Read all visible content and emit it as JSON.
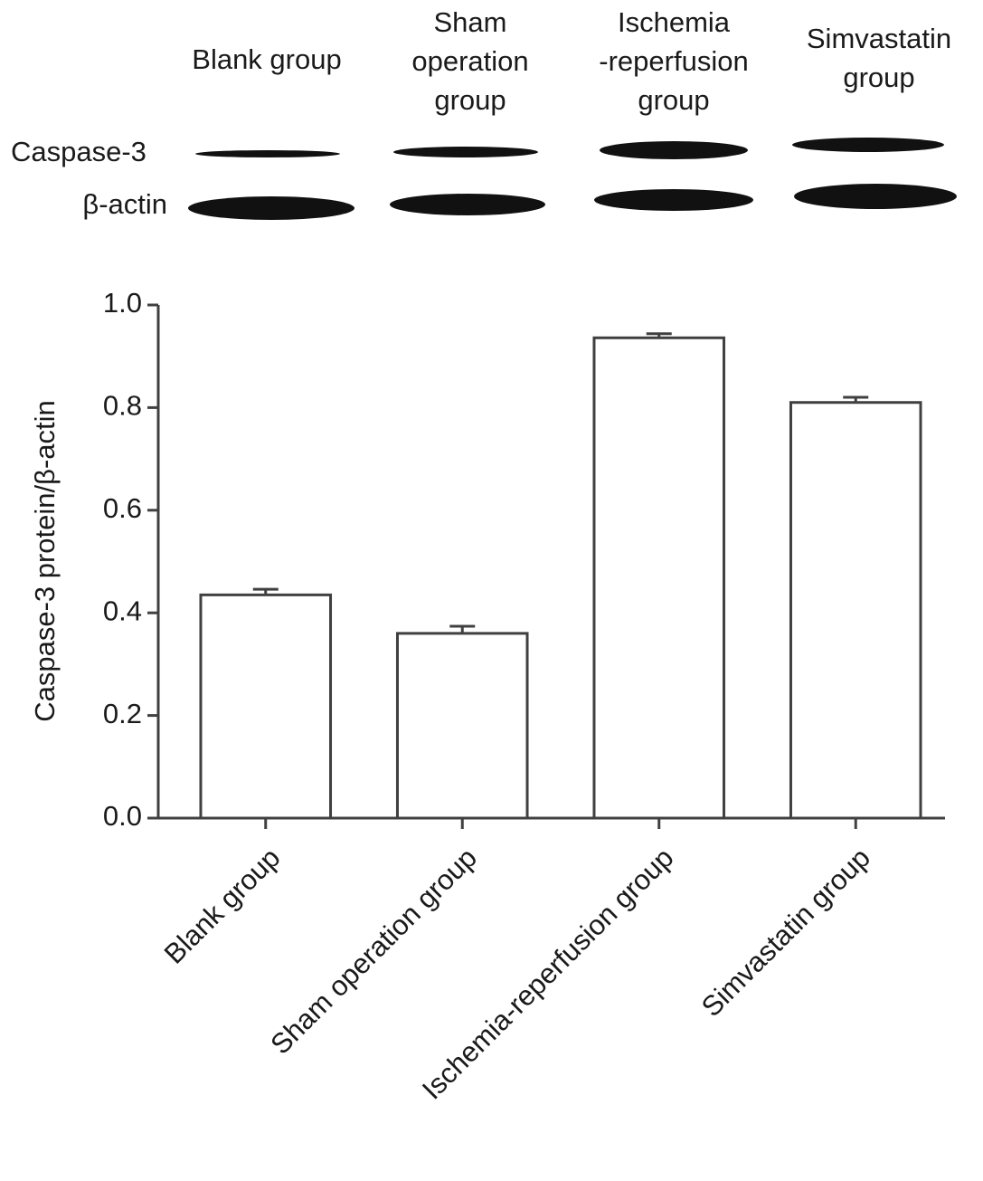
{
  "blot": {
    "columns": [
      [
        "Blank group"
      ],
      [
        "Sham",
        "operation",
        "group"
      ],
      [
        "Ischemia",
        "-reperfusion",
        "group"
      ],
      [
        "Simvastatin",
        "group"
      ]
    ],
    "rows": [
      "Caspase-3",
      "β-actin"
    ]
  },
  "chart_data": {
    "type": "bar",
    "ylabel": "Caspase-3 protein/β-actin",
    "categories": [
      "Blank group",
      "Sham operation group",
      "Ischemia-reperfusion group",
      "Simvastatin group"
    ],
    "values": [
      0.435,
      0.36,
      0.936,
      0.81
    ],
    "errors": [
      0.011,
      0.014,
      0.008,
      0.01
    ],
    "color": "#ffffff",
    "edgecolor": "#404040",
    "ylim": [
      0,
      1
    ],
    "yticks": [
      {
        "value": 0,
        "label": "0.0"
      },
      0.2,
      0.4,
      0.6,
      0.8,
      {
        "value": 1,
        "label": "1.0"
      }
    ],
    "grid": false
  }
}
